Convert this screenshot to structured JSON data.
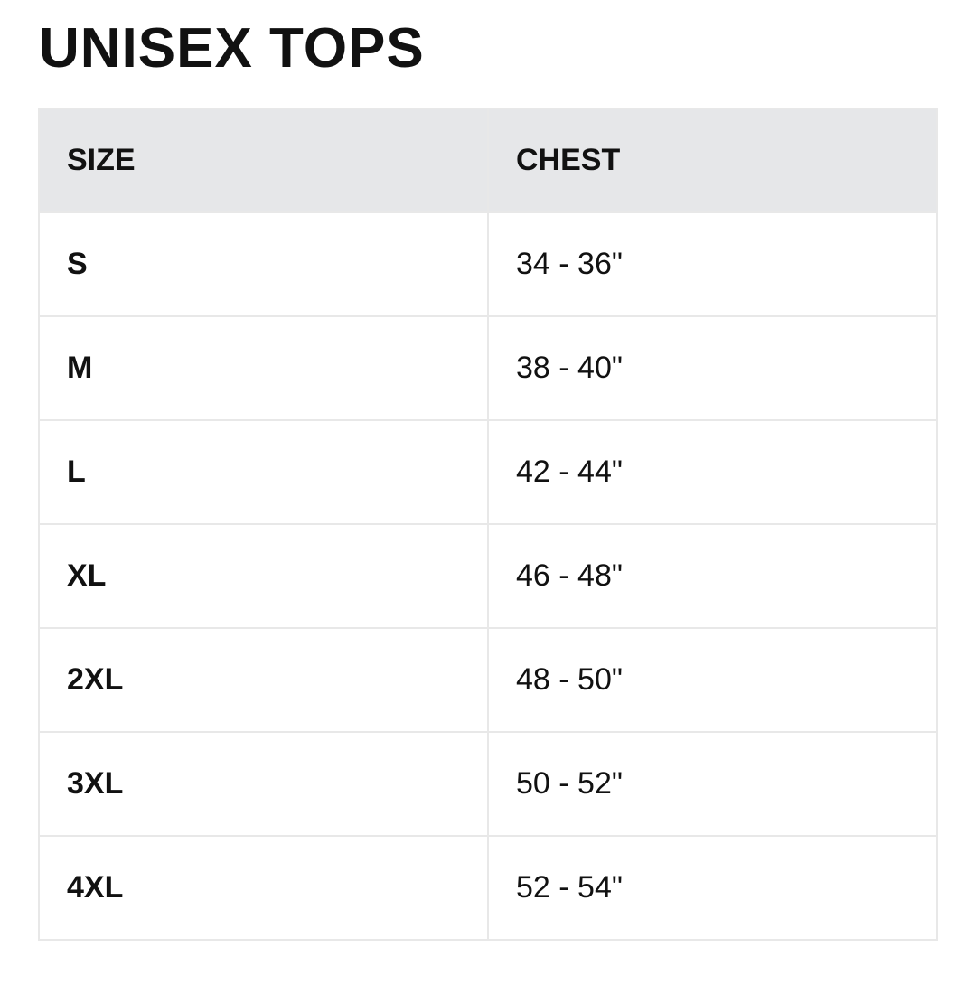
{
  "title": "UNISEX TOPS",
  "table": {
    "headers": [
      "SIZE",
      "CHEST"
    ],
    "rows": [
      [
        "S",
        "34 - 36\""
      ],
      [
        "M",
        "38 - 40\""
      ],
      [
        "L",
        "42 - 44\""
      ],
      [
        "XL",
        "46 - 48\""
      ],
      [
        "2XL",
        "48 - 50\""
      ],
      [
        "3XL",
        "50 - 52\""
      ],
      [
        "4XL",
        "52 - 54\""
      ]
    ]
  },
  "colors": {
    "header_bg": "#e6e7e9",
    "border": "#e8e8e8",
    "text": "#111111"
  }
}
